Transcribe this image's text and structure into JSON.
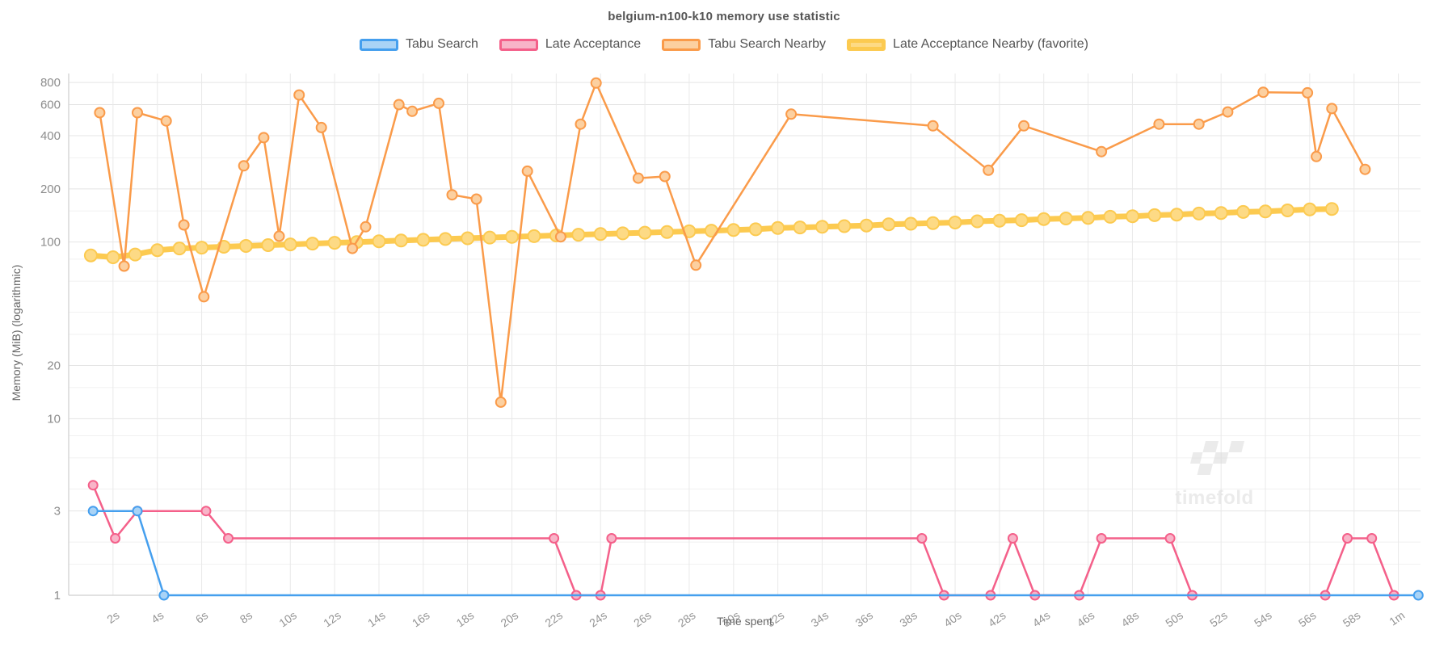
{
  "watermark": {
    "text": "timefold"
  },
  "chart_data": {
    "type": "line",
    "title": "belgium-n100-k10 memory use statistic",
    "xlabel": "Time spent",
    "ylabel": "Memory (MiB) (logarithmic)",
    "y_scale": "log",
    "y_range": [
      1,
      900
    ],
    "x_range": [
      0,
      61
    ],
    "grid": true,
    "legend_position": "top",
    "x_ticks": [
      {
        "t": 2,
        "label": "2s"
      },
      {
        "t": 4,
        "label": "4s"
      },
      {
        "t": 6,
        "label": "6s"
      },
      {
        "t": 8,
        "label": "8s"
      },
      {
        "t": 10,
        "label": "10s"
      },
      {
        "t": 12,
        "label": "12s"
      },
      {
        "t": 14,
        "label": "14s"
      },
      {
        "t": 16,
        "label": "16s"
      },
      {
        "t": 18,
        "label": "18s"
      },
      {
        "t": 20,
        "label": "20s"
      },
      {
        "t": 22,
        "label": "22s"
      },
      {
        "t": 24,
        "label": "24s"
      },
      {
        "t": 26,
        "label": "26s"
      },
      {
        "t": 28,
        "label": "28s"
      },
      {
        "t": 30,
        "label": "30s"
      },
      {
        "t": 32,
        "label": "32s"
      },
      {
        "t": 34,
        "label": "34s"
      },
      {
        "t": 36,
        "label": "36s"
      },
      {
        "t": 38,
        "label": "38s"
      },
      {
        "t": 40,
        "label": "40s"
      },
      {
        "t": 42,
        "label": "42s"
      },
      {
        "t": 44,
        "label": "44s"
      },
      {
        "t": 46,
        "label": "46s"
      },
      {
        "t": 48,
        "label": "48s"
      },
      {
        "t": 50,
        "label": "50s"
      },
      {
        "t": 52,
        "label": "52s"
      },
      {
        "t": 54,
        "label": "54s"
      },
      {
        "t": 56,
        "label": "56s"
      },
      {
        "t": 58,
        "label": "58s"
      },
      {
        "t": 60,
        "label": "1m"
      }
    ],
    "y_ticks": [
      {
        "v": 800,
        "label": "800"
      },
      {
        "v": 600,
        "label": "600"
      },
      {
        "v": 400,
        "label": "400"
      },
      {
        "v": 200,
        "label": "200"
      },
      {
        "v": 100,
        "label": "100"
      },
      {
        "v": 20,
        "label": "20"
      },
      {
        "v": 10,
        "label": "10"
      },
      {
        "v": 3,
        "label": "3"
      },
      {
        "v": 1,
        "label": "1"
      }
    ],
    "y_grid_minor": [
      1.5,
      2,
      4,
      6,
      8,
      15,
      30,
      40,
      60,
      80,
      150,
      300
    ],
    "series": [
      {
        "name": "Tabu Search",
        "color": "#459fee",
        "marker_fill": "#a9d3f6",
        "line_width": 2.5,
        "marker_radius": 5.5,
        "favorite": false,
        "points": [
          [
            1.1,
            3
          ],
          [
            3.1,
            3
          ],
          [
            4.3,
            1
          ],
          [
            60.9,
            1
          ]
        ]
      },
      {
        "name": "Late Acceptance",
        "color": "#f4608a",
        "marker_fill": "#f8b4c8",
        "line_width": 2.5,
        "marker_radius": 5.5,
        "favorite": false,
        "points": [
          [
            1.1,
            4.2
          ],
          [
            2.1,
            2.1
          ],
          [
            3.1,
            3
          ],
          [
            6.2,
            3
          ],
          [
            7.2,
            2.1
          ],
          [
            21.9,
            2.1
          ],
          [
            22.9,
            1
          ],
          [
            24,
            1
          ],
          [
            24.5,
            2.1
          ],
          [
            38.5,
            2.1
          ],
          [
            39.5,
            1
          ],
          [
            41.6,
            1
          ],
          [
            42.6,
            2.1
          ],
          [
            43.6,
            1
          ],
          [
            45.6,
            1
          ],
          [
            46.6,
            2.1
          ],
          [
            49.7,
            2.1
          ],
          [
            50.7,
            1
          ],
          [
            56.7,
            1
          ],
          [
            57.7,
            2.1
          ],
          [
            58.8,
            2.1
          ],
          [
            59.8,
            1
          ]
        ]
      },
      {
        "name": "Tabu Search Nearby",
        "color": "#fa9b4a",
        "marker_fill": "#fcd0a0",
        "line_width": 2.5,
        "marker_radius": 6,
        "favorite": false,
        "points": [
          [
            1.4,
            540
          ],
          [
            2.5,
            73
          ],
          [
            3.1,
            540
          ],
          [
            4.4,
            485
          ],
          [
            5.2,
            125
          ],
          [
            6.1,
            49
          ],
          [
            7.9,
            270
          ],
          [
            8.8,
            390
          ],
          [
            9.5,
            108
          ],
          [
            10.4,
            680
          ],
          [
            11.4,
            445
          ],
          [
            12.8,
            92
          ],
          [
            13.4,
            122
          ],
          [
            14.9,
            600
          ],
          [
            15.5,
            550
          ],
          [
            16.7,
            610
          ],
          [
            17.3,
            185
          ],
          [
            18.4,
            175
          ],
          [
            19.5,
            12.4
          ],
          [
            20.7,
            252
          ],
          [
            22.2,
            107
          ],
          [
            23.1,
            465
          ],
          [
            23.8,
            795
          ],
          [
            25.7,
            230
          ],
          [
            26.9,
            235
          ],
          [
            28.3,
            74
          ],
          [
            32.6,
            530
          ],
          [
            39,
            455
          ],
          [
            41.5,
            255
          ],
          [
            43.1,
            455
          ],
          [
            46.6,
            325
          ],
          [
            49.2,
            465
          ],
          [
            51,
            465
          ],
          [
            52.3,
            545
          ],
          [
            53.9,
            705
          ],
          [
            55.9,
            700
          ],
          [
            56.3,
            305
          ],
          [
            57,
            570
          ],
          [
            58.5,
            258
          ]
        ]
      },
      {
        "name": "Late Acceptance Nearby (favorite)",
        "color": "#fcca50",
        "marker_fill": "#fdda85",
        "line_width": 7,
        "marker_radius": 7.5,
        "favorite": true,
        "points": [
          [
            1,
            84
          ],
          [
            2,
            82
          ],
          [
            3,
            85
          ],
          [
            4,
            90
          ],
          [
            5,
            92
          ],
          [
            6,
            93
          ],
          [
            7,
            94
          ],
          [
            8,
            95
          ],
          [
            9,
            96
          ],
          [
            10,
            97
          ],
          [
            11,
            98
          ],
          [
            12,
            99
          ],
          [
            13,
            100
          ],
          [
            14,
            101
          ],
          [
            15,
            102
          ],
          [
            16,
            103
          ],
          [
            17,
            104
          ],
          [
            18,
            105
          ],
          [
            19,
            106
          ],
          [
            20,
            107
          ],
          [
            21,
            108
          ],
          [
            22,
            109
          ],
          [
            23,
            110
          ],
          [
            24,
            111
          ],
          [
            25,
            112
          ],
          [
            26,
            113
          ],
          [
            27,
            114
          ],
          [
            28,
            115
          ],
          [
            29,
            116
          ],
          [
            30,
            117
          ],
          [
            31,
            118
          ],
          [
            32,
            120
          ],
          [
            33,
            121
          ],
          [
            34,
            122
          ],
          [
            35,
            123
          ],
          [
            36,
            124
          ],
          [
            37,
            126
          ],
          [
            38,
            127
          ],
          [
            39,
            128
          ],
          [
            40,
            129
          ],
          [
            41,
            131
          ],
          [
            42,
            132
          ],
          [
            43,
            133
          ],
          [
            44,
            135
          ],
          [
            45,
            136
          ],
          [
            46,
            137
          ],
          [
            47,
            139
          ],
          [
            48,
            140
          ],
          [
            49,
            142
          ],
          [
            50,
            143
          ],
          [
            51,
            145
          ],
          [
            52,
            146
          ],
          [
            53,
            148
          ],
          [
            54,
            149
          ],
          [
            55,
            151
          ],
          [
            56,
            153
          ],
          [
            57,
            154
          ]
        ]
      }
    ]
  }
}
